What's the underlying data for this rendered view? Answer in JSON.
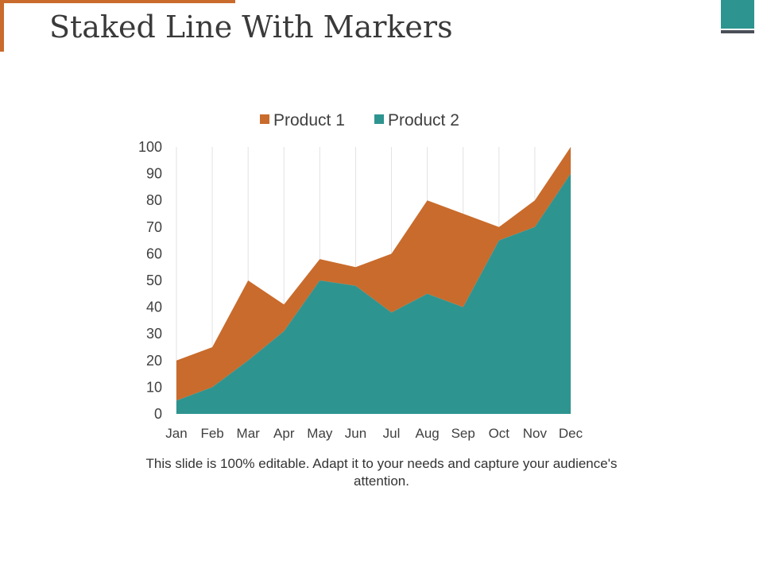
{
  "slide": {
    "title": "Staked Line With Markers",
    "caption": "This slide is 100% editable. Adapt it to your needs and capture your audience's attention.",
    "colors": {
      "accent": "#c96b2c",
      "teal": "#2e9490",
      "dark": "#4a4f57"
    }
  },
  "chart_data": {
    "type": "area",
    "stacked": true,
    "title": "",
    "xlabel": "",
    "ylabel": "",
    "categories": [
      "Jan",
      "Feb",
      "Mar",
      "Apr",
      "May",
      "Jun",
      "Jul",
      "Aug",
      "Sep",
      "Oct",
      "Nov",
      "Dec"
    ],
    "ylim": [
      0,
      100
    ],
    "yticks": [
      0,
      10,
      20,
      30,
      40,
      50,
      60,
      70,
      80,
      90,
      100
    ],
    "gridlines": "vertical",
    "legend_position": "top",
    "series": [
      {
        "name": "Product 1",
        "color": "#c96b2c",
        "values": [
          15,
          15,
          30,
          10,
          8,
          7,
          22,
          35,
          35,
          5,
          10,
          10
        ]
      },
      {
        "name": "Product 2",
        "color": "#2e9490",
        "values": [
          5,
          10,
          20,
          31,
          50,
          48,
          38,
          45,
          40,
          65,
          70,
          90
        ]
      }
    ]
  }
}
